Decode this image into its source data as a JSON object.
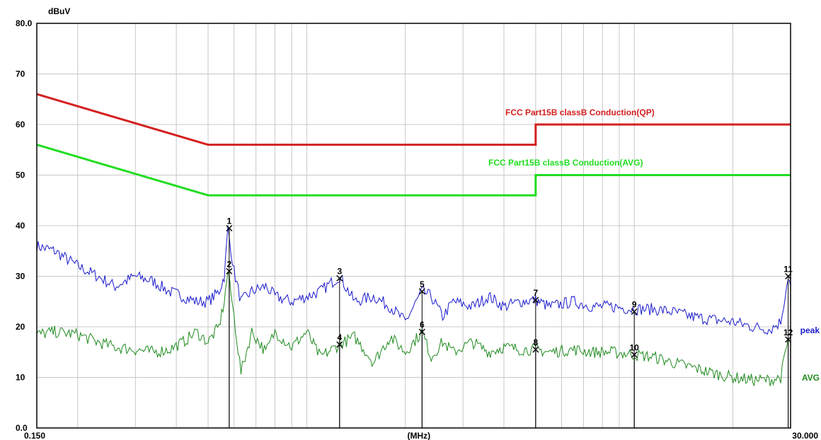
{
  "chart_data": {
    "type": "line",
    "ylabel": "dBuV",
    "xlabel": "(MHz)",
    "x_scale": "log",
    "xlim": [
      0.15,
      30.0
    ],
    "ylim": [
      0,
      80
    ],
    "y_ticks": [
      "0.0",
      "10",
      "20",
      "30",
      "40",
      "50",
      "60",
      "70",
      "80.0"
    ],
    "x_tick_labels": [
      {
        "x": 0.15,
        "label": "0.150"
      },
      {
        "x": 2.2,
        "label": "(MHz)"
      },
      {
        "x": 30.0,
        "label": "30.000"
      }
    ],
    "grid": true,
    "colors": {
      "qp_limit": "#d42020",
      "avg_limit": "#22dd22",
      "peak": "#1a1acc",
      "avg": "#1e8a1e",
      "marker": "#000000"
    },
    "series": [
      {
        "name": "FCC  Part15B classB Conduction(QP)",
        "role": "limit",
        "x": [
          0.15,
          0.5,
          5.0,
          5.0,
          30.0
        ],
        "values": [
          66,
          56,
          56,
          60,
          60
        ]
      },
      {
        "name": "FCC  Part15B classB Conduction(AVG)",
        "role": "limit",
        "x": [
          0.15,
          0.5,
          5.0,
          5.0,
          30.0
        ],
        "values": [
          56,
          46,
          46,
          50,
          50
        ]
      },
      {
        "name": "peak",
        "role": "measurement",
        "x": [
          0.15,
          0.17,
          0.2,
          0.23,
          0.26,
          0.3,
          0.34,
          0.38,
          0.42,
          0.46,
          0.5,
          0.54,
          0.56,
          0.575,
          0.6,
          0.63,
          0.68,
          0.75,
          0.8,
          0.9,
          1.0,
          1.1,
          1.26,
          1.4,
          1.6,
          1.8,
          2.0,
          2.25,
          2.4,
          2.6,
          2.8,
          3.2,
          3.6,
          4.0,
          4.5,
          5.0,
          5.5,
          6.5,
          7.5,
          8.5,
          10.0,
          11.5,
          13.0,
          15.0,
          17.0,
          20.0,
          23.0,
          26.0,
          28.0,
          29.5,
          30.0
        ],
        "values": [
          36,
          35,
          32,
          30,
          28,
          30,
          29,
          27,
          26,
          25,
          25,
          27,
          30,
          39.5,
          31,
          25,
          27,
          28,
          26,
          25,
          26,
          27,
          30,
          25,
          26,
          24,
          21,
          27,
          26,
          22,
          25,
          24,
          26,
          24,
          25,
          25.3,
          24,
          25,
          24,
          24,
          23.5,
          23.5,
          23,
          22,
          21.5,
          21,
          20,
          19.5,
          21,
          30,
          28
        ]
      },
      {
        "name": "AVG",
        "role": "measurement",
        "x": [
          0.15,
          0.17,
          0.2,
          0.23,
          0.26,
          0.3,
          0.34,
          0.38,
          0.42,
          0.46,
          0.5,
          0.54,
          0.56,
          0.575,
          0.6,
          0.63,
          0.68,
          0.75,
          0.8,
          0.9,
          1.0,
          1.1,
          1.26,
          1.4,
          1.6,
          1.8,
          2.0,
          2.25,
          2.4,
          2.6,
          2.8,
          3.2,
          3.6,
          4.0,
          4.5,
          5.0,
          5.5,
          6.5,
          7.5,
          8.5,
          10.0,
          11.5,
          13.0,
          15.0,
          17.0,
          20.0,
          23.0,
          26.0,
          28.0,
          29.5,
          30.0
        ],
        "values": [
          18.5,
          19,
          18.5,
          17,
          16,
          15.5,
          15,
          15.5,
          17,
          19,
          17,
          20,
          25,
          31,
          22,
          11,
          19,
          15,
          19,
          16,
          19,
          14,
          16.5,
          18,
          13,
          18,
          15,
          19,
          14,
          17,
          15,
          17,
          15,
          16,
          15.5,
          15.5,
          15,
          15.5,
          15,
          15,
          14.5,
          14,
          13,
          12,
          11,
          10,
          9.5,
          9.5,
          10,
          17.5,
          17
        ]
      }
    ],
    "markers": [
      {
        "id": "1",
        "x": 0.58,
        "y": 39.5,
        "series": "peak"
      },
      {
        "id": "2",
        "x": 0.58,
        "y": 31.0,
        "series": "AVG"
      },
      {
        "id": "3",
        "x": 1.26,
        "y": 29.6,
        "series": "peak"
      },
      {
        "id": "4",
        "x": 1.26,
        "y": 16.5,
        "series": "AVG"
      },
      {
        "id": "5",
        "x": 2.25,
        "y": 27.0,
        "series": "peak"
      },
      {
        "id": "6",
        "x": 2.25,
        "y": 19.0,
        "series": "AVG"
      },
      {
        "id": "7",
        "x": 5.0,
        "y": 25.3,
        "series": "peak"
      },
      {
        "id": "8",
        "x": 5.0,
        "y": 15.5,
        "series": "AVG"
      },
      {
        "id": "9",
        "x": 10.0,
        "y": 23.0,
        "series": "peak"
      },
      {
        "id": "10",
        "x": 10.0,
        "y": 14.5,
        "series": "AVG"
      },
      {
        "id": "11",
        "x": 29.5,
        "y": 30.0,
        "series": "peak"
      },
      {
        "id": "12",
        "x": 29.5,
        "y": 17.5,
        "series": "AVG"
      }
    ]
  }
}
